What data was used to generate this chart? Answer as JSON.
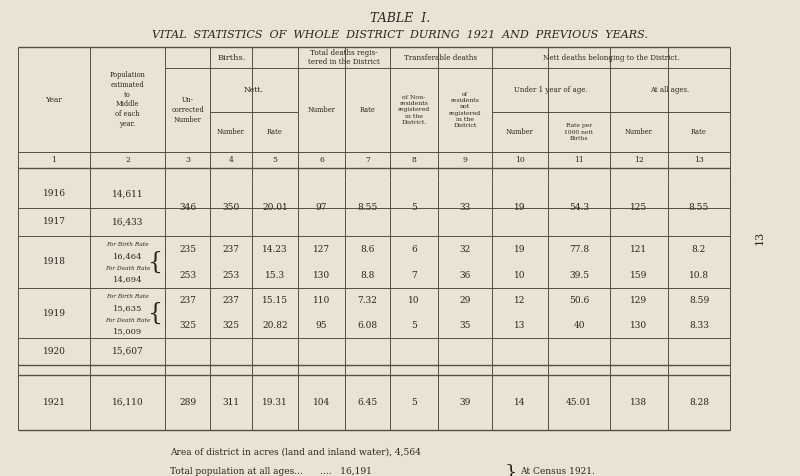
{
  "title1": "TABLE  I.",
  "title2": "VITAL  STATISTICS  OF  WHOLE  DISTRICT  DURING  1921  AND  PREVIOUS  YEARS.",
  "bg_color": "#e8e3d3",
  "text_color": "#2a2520",
  "line_color": "#555045",
  "footer1": "Area of district in acres (land and inland water), 4,564",
  "footer2": "Total population at all ages...      ....   16,191",
  "footer3": "At Census 1921.",
  "side_label": "13",
  "vals_1617": [
    "346",
    "350",
    "20.01",
    "97",
    "8.55",
    "5",
    "33",
    "19",
    "54.3",
    "125",
    "8.55"
  ],
  "vals_1918_1": [
    "235",
    "237",
    "14.23",
    "127",
    "8.6",
    "6",
    "32",
    "19",
    "77.8",
    "121",
    "8.2"
  ],
  "vals_1918_2": [
    "253",
    "253",
    "15.3",
    "130",
    "8.8",
    "7",
    "36",
    "10",
    "39.5",
    "159",
    "10.8"
  ],
  "vals_1919_1": [
    "237",
    "237",
    "15.15",
    "110",
    "7.32",
    "10",
    "29",
    "12",
    "50.6",
    "129",
    "8.59"
  ],
  "vals_1919_2": [
    "325",
    "325",
    "20.82",
    "95",
    "6.08",
    "5",
    "35",
    "13",
    "40",
    "130",
    "8.33"
  ],
  "vals_1921": [
    "289",
    "311",
    "19.31",
    "104",
    "6.45",
    "5",
    "39",
    "14",
    "45.01",
    "138",
    "8.28"
  ]
}
